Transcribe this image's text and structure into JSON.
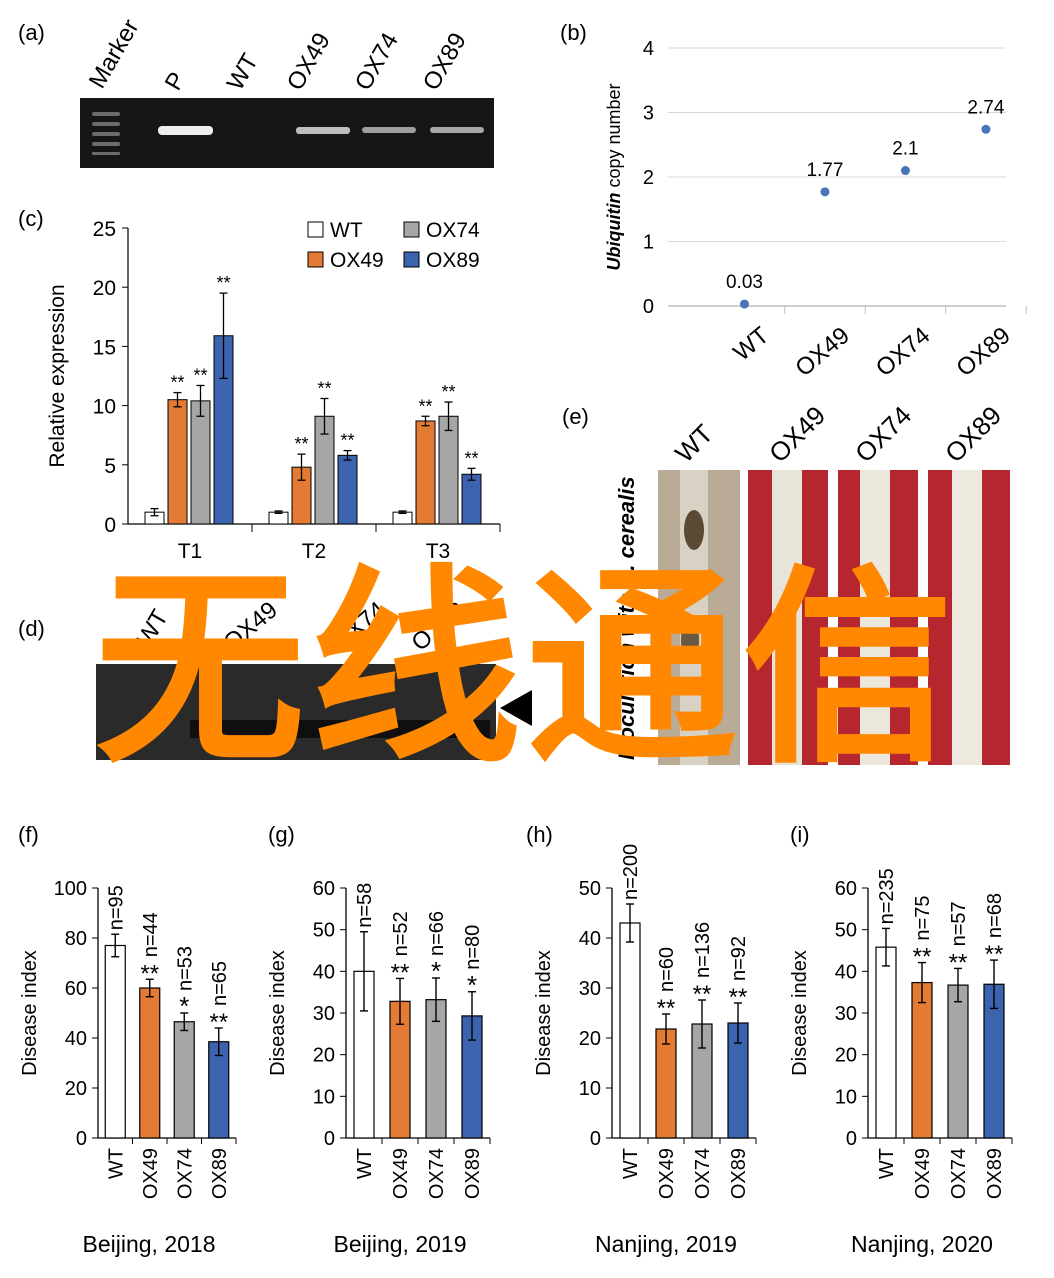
{
  "colors": {
    "WT": "#ffffff",
    "OX49": "#e47b35",
    "OX74": "#a6a6a6",
    "OX89": "#3c64ae",
    "point": "#4a74b8",
    "gel_bg": "#161616"
  },
  "panel_labels": {
    "a": "(a)",
    "b": "(b)",
    "c": "(c)",
    "d": "(d)",
    "e": "(e)",
    "f": "(f)",
    "g": "(g)",
    "h": "(h)",
    "i": "(i)"
  },
  "gel_a": {
    "lanes": [
      "Marker",
      "P",
      "WT",
      "OX49",
      "OX74",
      "OX89"
    ]
  },
  "gel_d": {
    "lanes": [
      "WT",
      "OX49",
      "OX74",
      "OX89"
    ]
  },
  "photo_e": {
    "lanes": [
      "WT",
      "OX49",
      "OX74",
      "OX89"
    ],
    "side_label": "Inoculation with R. cerealis"
  },
  "overlay": {
    "text": "无线通信"
  },
  "chart_data": [
    {
      "id": "b",
      "type": "scatter",
      "categories": [
        "WT",
        "OX49",
        "OX74",
        "OX89"
      ],
      "values": [
        0.03,
        1.77,
        2.1,
        2.74
      ],
      "labels": [
        "0.03",
        "1.77",
        "2.1",
        "2.74"
      ],
      "ylabel": {
        "italic": "Ubiquitin",
        "rest": " copy number"
      },
      "ylim": [
        0,
        4
      ],
      "yticks": [
        "0",
        "1",
        "2",
        "3",
        "4"
      ],
      "grid": true
    },
    {
      "id": "c",
      "type": "bar",
      "categories": [
        "T1",
        "T2",
        "T3"
      ],
      "ylabel": "Relative expression",
      "ylim": [
        0,
        25
      ],
      "yticks": [
        "0",
        "5",
        "10",
        "15",
        "20",
        "25"
      ],
      "legend": {
        "position": "top-right",
        "entries": [
          "WT",
          "OX74",
          "OX49",
          "OX89"
        ]
      },
      "series": [
        {
          "name": "WT",
          "values": [
            1.0,
            1.0,
            1.0
          ],
          "err": [
            0.3,
            0.1,
            0.1
          ],
          "sig": [
            "",
            "",
            ""
          ]
        },
        {
          "name": "OX49",
          "values": [
            10.5,
            4.8,
            8.7
          ],
          "err": [
            0.6,
            1.1,
            0.4
          ],
          "sig": [
            "**",
            "**",
            "**"
          ]
        },
        {
          "name": "OX74",
          "values": [
            10.4,
            9.1,
            9.1
          ],
          "err": [
            1.3,
            1.5,
            1.2
          ],
          "sig": [
            "**",
            "**",
            "**"
          ]
        },
        {
          "name": "OX89",
          "values": [
            15.9,
            5.8,
            4.2
          ],
          "err": [
            3.6,
            0.4,
            0.5
          ],
          "sig": [
            "**",
            "**",
            "**"
          ]
        }
      ]
    },
    {
      "id": "f",
      "type": "bar",
      "title": "Beijing, 2018",
      "ylabel": "Disease index",
      "categories": [
        "WT",
        "OX49",
        "OX74",
        "OX89"
      ],
      "values": [
        77,
        60,
        46.5,
        38.5
      ],
      "err": [
        4.5,
        3.5,
        3.5,
        5.5
      ],
      "n": [
        "n=95",
        "n=44",
        "n=53",
        "n=65"
      ],
      "sig": [
        "",
        "**",
        "*",
        "**"
      ],
      "ylim": [
        0,
        100
      ],
      "yticks": [
        "0",
        "20",
        "40",
        "60",
        "80",
        "100"
      ]
    },
    {
      "id": "g",
      "type": "bar",
      "title": "Beijing, 2019",
      "ylabel": "Disease index",
      "categories": [
        "WT",
        "OX49",
        "OX74",
        "OX89"
      ],
      "values": [
        40,
        32.8,
        33.2,
        29.3
      ],
      "err": [
        9.5,
        5.5,
        5.2,
        5.8
      ],
      "n": [
        "n=58",
        "n=52",
        "n=66",
        "n=80"
      ],
      "sig": [
        "",
        "**",
        "*",
        "*"
      ],
      "ylim": [
        0,
        60
      ],
      "yticks": [
        "0",
        "10",
        "20",
        "30",
        "40",
        "50",
        "60"
      ]
    },
    {
      "id": "h",
      "type": "bar",
      "title": "Nanjing, 2019",
      "ylabel": "Disease index",
      "categories": [
        "WT",
        "OX49",
        "OX74",
        "OX89"
      ],
      "values": [
        43,
        21.8,
        22.8,
        23
      ],
      "err": [
        3.8,
        3,
        4.8,
        4
      ],
      "n": [
        "n=200",
        "n=60",
        "n=136",
        "n=92"
      ],
      "sig": [
        "",
        "**",
        "**",
        "**"
      ],
      "ylim": [
        0,
        50
      ],
      "yticks": [
        "0",
        "10",
        "20",
        "30",
        "40",
        "50"
      ]
    },
    {
      "id": "i",
      "type": "bar",
      "title": "Nanjing, 2020",
      "ylabel": "Disease index",
      "categories": [
        "WT",
        "OX49",
        "OX74",
        "OX89"
      ],
      "values": [
        45.8,
        37.3,
        36.7,
        36.9
      ],
      "err": [
        4.5,
        4.8,
        4,
        5.8
      ],
      "n": [
        "n=235",
        "n=75",
        "n=57",
        "n=68"
      ],
      "sig": [
        "",
        "**",
        "**",
        "**"
      ],
      "ylim": [
        0,
        60
      ],
      "yticks": [
        "0",
        "10",
        "20",
        "30",
        "40",
        "50",
        "60"
      ]
    }
  ]
}
